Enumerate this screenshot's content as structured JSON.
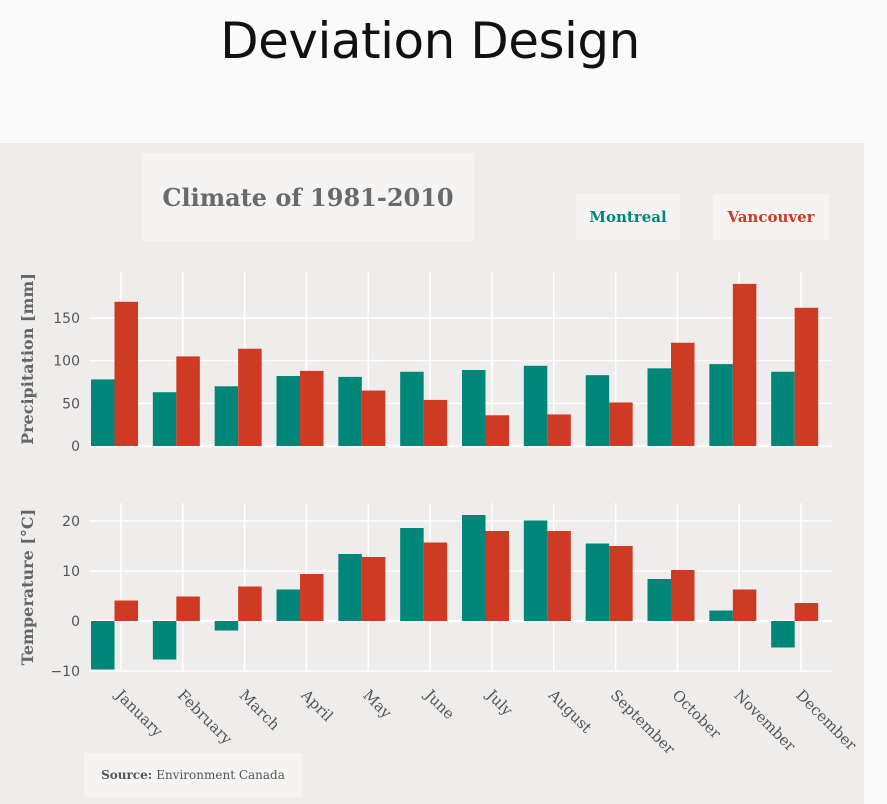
{
  "slide_title": "Deviation Design",
  "chart_title": "Climate of 1981-2010",
  "legend": {
    "montreal": "Montreal",
    "vancouver": "Vancouver"
  },
  "source": {
    "label": "Source:",
    "text": "Environment Canada"
  },
  "colors": {
    "montreal": "#00877a",
    "vancouver": "#cf3a24",
    "panel_bg": "#efedec",
    "grid": "#ffffff"
  },
  "chart_data": [
    {
      "type": "bar",
      "ylabel": "Precipitation [mm]",
      "ylim": [
        0,
        185
      ],
      "yticks": [
        0,
        50,
        100,
        150
      ],
      "categories": [
        "January",
        "February",
        "March",
        "April",
        "May",
        "June",
        "July",
        "August",
        "September",
        "October",
        "November",
        "December"
      ],
      "series": [
        {
          "name": "Montreal",
          "values": [
            78,
            63,
            70,
            82,
            81,
            87,
            89,
            94,
            83,
            91,
            96,
            87
          ]
        },
        {
          "name": "Vancouver",
          "values": [
            169,
            105,
            114,
            88,
            65,
            54,
            36,
            37,
            51,
            121,
            190,
            162
          ]
        }
      ]
    },
    {
      "type": "bar",
      "ylabel": "Temperature [°C]",
      "ylim": [
        -10,
        23
      ],
      "yticks": [
        -10,
        0,
        10,
        20
      ],
      "categories": [
        "January",
        "February",
        "March",
        "April",
        "May",
        "June",
        "July",
        "August",
        "September",
        "October",
        "November",
        "December"
      ],
      "series": [
        {
          "name": "Montreal",
          "values": [
            -9.7,
            -7.7,
            -1.9,
            6.3,
            13.4,
            18.6,
            21.2,
            20.1,
            15.5,
            8.4,
            2.1,
            -5.3
          ]
        },
        {
          "name": "Vancouver",
          "values": [
            4.1,
            4.9,
            6.9,
            9.4,
            12.8,
            15.7,
            18.0,
            18.0,
            15.0,
            10.2,
            6.3,
            3.6
          ]
        }
      ]
    }
  ]
}
